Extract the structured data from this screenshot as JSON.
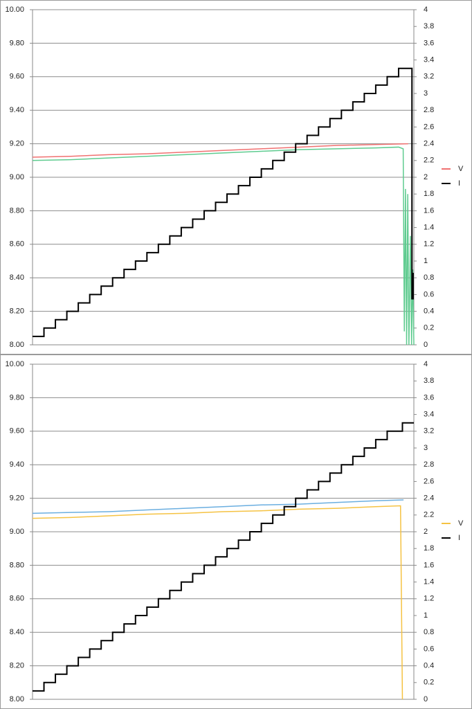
{
  "chart_data": [
    {
      "type": "line",
      "xlim": [
        0,
        100
      ],
      "ylim": [
        8,
        10
      ],
      "y2lim": [
        0,
        4
      ],
      "grid": true,
      "legend": "right",
      "yticks": [
        {
          "value": 8,
          "label": "8.00"
        },
        {
          "value": 8.2,
          "label": "8.20"
        },
        {
          "value": 8.4,
          "label": "8.40"
        },
        {
          "value": 8.6,
          "label": "8.60"
        },
        {
          "value": 8.8,
          "label": "8.80"
        },
        {
          "value": 9,
          "label": "9.00"
        },
        {
          "value": 9.2,
          "label": "9.20"
        },
        {
          "value": 9.4,
          "label": "9.40"
        },
        {
          "value": 9.6,
          "label": "9.60"
        },
        {
          "value": 9.8,
          "label": "9.80"
        },
        {
          "value": 10,
          "label": "10.00"
        }
      ],
      "y2ticks": [
        0,
        0.2,
        0.4,
        0.6,
        0.8,
        1,
        1.2,
        1.4,
        1.6,
        1.8,
        2,
        2.2,
        2.4,
        2.6,
        2.8,
        3,
        3.2,
        3.4,
        3.6,
        3.8,
        4
      ],
      "series": [
        {
          "name": "V",
          "color": "#f07070",
          "x": [
            0,
            10,
            20,
            30,
            40,
            50,
            60,
            70,
            80,
            90,
            98.5
          ],
          "values": [
            9.12,
            9.125,
            9.135,
            9.14,
            9.15,
            9.16,
            9.17,
            9.18,
            9.19,
            9.195,
            9.2
          ]
        },
        {
          "color": "#5ecb8f",
          "x": [
            0,
            10,
            20,
            30,
            40,
            50,
            60,
            70,
            80,
            90,
            96,
            97.2,
            97.5,
            97.8,
            98.1,
            98.4,
            98.7,
            99.1,
            99.4,
            99.7,
            100
          ],
          "values": [
            9.1,
            9.105,
            9.115,
            9.125,
            9.135,
            9.145,
            9.155,
            9.165,
            9.17,
            9.175,
            9.18,
            9.17,
            8.08,
            8.93,
            8.0,
            8.9,
            8.0,
            8.65,
            8.0,
            8.45,
            8.0
          ]
        },
        {
          "name": "I",
          "color": "#000000",
          "axis": "y2",
          "step": true,
          "x": [
            0,
            3,
            6,
            9,
            12,
            15,
            18,
            21,
            24,
            27,
            30,
            33,
            36,
            39,
            42,
            45,
            48,
            51,
            54,
            57,
            60,
            63,
            66,
            69,
            72,
            75,
            78,
            81,
            84,
            87,
            90,
            93,
            96,
            99.5,
            99.8
          ],
          "values": [
            0.1,
            0.2,
            0.3,
            0.4,
            0.5,
            0.6,
            0.7,
            0.8,
            0.9,
            1,
            1.1,
            1.2,
            1.3,
            1.4,
            1.5,
            1.6,
            1.7,
            1.8,
            1.9,
            2,
            2.1,
            2.2,
            2.3,
            2.4,
            2.5,
            2.6,
            2.7,
            2.8,
            2.9,
            3,
            3.1,
            3.2,
            3.3,
            0.55,
            0.85
          ]
        }
      ]
    },
    {
      "type": "line",
      "xlim": [
        0,
        100
      ],
      "ylim": [
        8,
        10
      ],
      "y2lim": [
        0,
        4
      ],
      "grid": true,
      "legend": "right",
      "yticks": [
        {
          "value": 8,
          "label": "8.00"
        },
        {
          "value": 8.2,
          "label": "8.20"
        },
        {
          "value": 8.4,
          "label": "8.40"
        },
        {
          "value": 8.6,
          "label": "8.60"
        },
        {
          "value": 8.8,
          "label": "8.80"
        },
        {
          "value": 9,
          "label": "9.00"
        },
        {
          "value": 9.2,
          "label": "9.20"
        },
        {
          "value": 9.4,
          "label": "9.40"
        },
        {
          "value": 9.6,
          "label": "9.60"
        },
        {
          "value": 9.8,
          "label": "9.80"
        },
        {
          "value": 10,
          "label": "10.00"
        }
      ],
      "y2ticks": [
        0,
        0.2,
        0.4,
        0.6,
        0.8,
        1,
        1.2,
        1.4,
        1.6,
        1.8,
        2,
        2.2,
        2.4,
        2.6,
        2.8,
        3,
        3.2,
        3.4,
        3.6,
        3.8,
        4
      ],
      "series": [
        {
          "color": "#6aaee0",
          "x": [
            0,
            10,
            20,
            30,
            40,
            50,
            60,
            70,
            80,
            90,
            97.3
          ],
          "values": [
            9.11,
            9.115,
            9.12,
            9.13,
            9.14,
            9.15,
            9.16,
            9.165,
            9.175,
            9.185,
            9.19
          ]
        },
        {
          "name": "V",
          "color": "#f5c242",
          "x": [
            0,
            10,
            20,
            30,
            40,
            50,
            60,
            70,
            80,
            90,
            96.5,
            97
          ],
          "values": [
            9.08,
            9.085,
            9.095,
            9.105,
            9.11,
            9.12,
            9.125,
            9.135,
            9.14,
            9.15,
            9.155,
            8.0
          ]
        },
        {
          "name": "I",
          "color": "#000000",
          "axis": "y2",
          "step": true,
          "x": [
            0,
            3,
            6,
            9,
            12,
            15,
            18,
            21,
            24,
            27,
            30,
            33,
            36,
            39,
            42,
            45,
            48,
            51,
            54,
            57,
            60,
            63,
            66,
            69,
            72,
            75,
            78,
            81,
            84,
            87,
            90,
            93,
            97
          ],
          "values": [
            0.1,
            0.2,
            0.3,
            0.4,
            0.5,
            0.6,
            0.7,
            0.8,
            0.9,
            1,
            1.1,
            1.2,
            1.3,
            1.4,
            1.5,
            1.6,
            1.7,
            1.8,
            1.9,
            2,
            2.1,
            2.2,
            2.3,
            2.4,
            2.5,
            2.6,
            2.7,
            2.8,
            2.9,
            3,
            3.1,
            3.2,
            3.3
          ]
        }
      ]
    }
  ]
}
